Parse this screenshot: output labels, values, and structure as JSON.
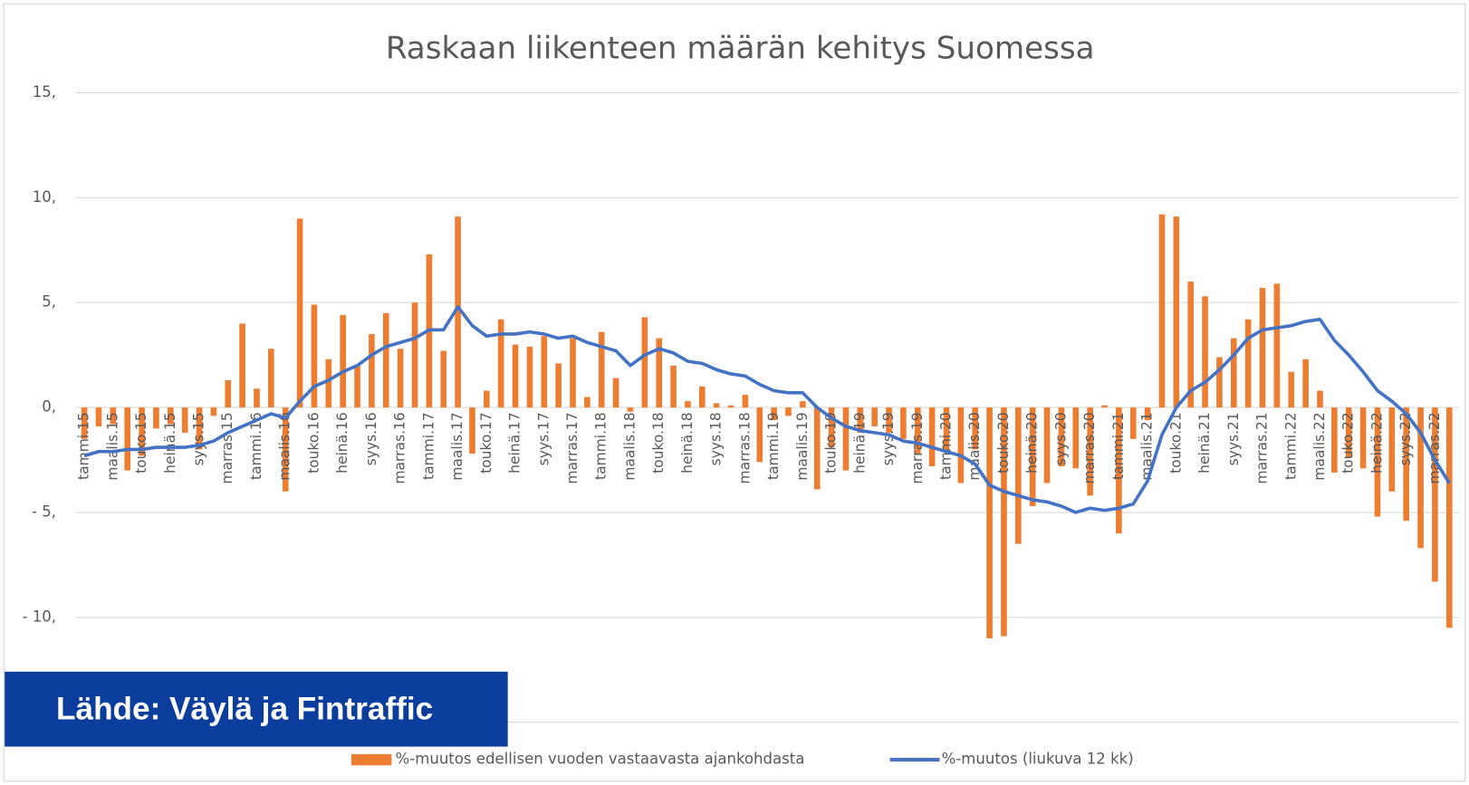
{
  "chart_data": {
    "type": "bar-line",
    "title": "Raskaan liikenteen määrän kehitys Suomessa",
    "annotation": "Lähde: Väylä ja Fintraffic",
    "categories": [
      "tammi.15",
      null,
      "maalis.15",
      null,
      "touko.15",
      null,
      "heinä.15",
      null,
      "syys.15",
      null,
      "marras.15",
      null,
      "tammi.16",
      null,
      "maalis.16",
      null,
      "touko.16",
      null,
      "heinä.16",
      null,
      "syys.16",
      null,
      "marras.16",
      null,
      "tammi.17",
      null,
      "maalis.17",
      null,
      "touko.17",
      null,
      "heinä.17",
      null,
      "syys.17",
      null,
      "marras.17",
      null,
      "tammi.18",
      null,
      "maalis.18",
      null,
      "touko.18",
      null,
      "heinä.18",
      null,
      "syys.18",
      null,
      "marras.18",
      null,
      "tammi.19",
      null,
      "maalis.19",
      null,
      "touko.19",
      null,
      "heinä.19",
      null,
      "syys.19",
      null,
      "marras.19",
      null,
      "tammi.20",
      null,
      "maalis.20",
      null,
      "touko.20",
      null,
      "heinä.20",
      null,
      "syys.20",
      null,
      "marras.20",
      null,
      "tammi.21",
      null,
      "maalis.21",
      null,
      "touko.21",
      null,
      "heinä.21",
      null,
      "syys.21",
      null,
      "marras.21",
      null,
      "tammi.22",
      null,
      "maalis.22",
      null,
      "touko.22",
      null,
      "heinä.22",
      null,
      "syys.22",
      null,
      "marras.22",
      null
    ],
    "series": [
      {
        "name": "%-muutos edellisen vuoden vastaavasta ajankohdasta",
        "type": "bar",
        "color": "#ed7d31",
        "values": [
          -1.5,
          -0.9,
          -0.8,
          -3.0,
          -2.3,
          -1.0,
          -0.8,
          -1.2,
          -2.0,
          -0.4,
          1.3,
          4.0,
          0.9,
          2.8,
          -4.0,
          9.0,
          4.9,
          2.3,
          4.4,
          2.0,
          3.5,
          4.5,
          2.8,
          5.0,
          7.3,
          2.7,
          9.1,
          -2.2,
          0.8,
          4.2,
          3.0,
          2.9,
          3.4,
          2.1,
          3.3,
          0.5,
          3.6,
          1.4,
          -0.2,
          4.3,
          3.3,
          2.0,
          0.3,
          1.0,
          0.2,
          0.1,
          0.6,
          -2.6,
          -0.6,
          -0.4,
          0.3,
          -3.9,
          -1.9,
          -3.0,
          -1.2,
          -0.9,
          -1.2,
          -1.5,
          -2.2,
          -2.8,
          -2.0,
          -3.6,
          -2.0,
          -11.0,
          -10.9,
          -6.5,
          -4.7,
          -3.6,
          -2.8,
          -2.9,
          -4.2,
          0.1,
          -6.0,
          -1.5,
          -0.6,
          9.2,
          9.1,
          6.0,
          5.3,
          2.4,
          3.3,
          4.2,
          5.7,
          5.9,
          1.7,
          2.3,
          0.8,
          -3.1,
          -2.4,
          -2.9,
          -5.2,
          -4.0,
          -5.4,
          -6.7,
          -8.3,
          -10.5
        ]
      },
      {
        "name": "%-muutos (liukuva 12 kk)",
        "type": "line",
        "color": "#4472c4",
        "values": [
          -2.3,
          -2.1,
          -2.1,
          -2.0,
          -2.0,
          -1.9,
          -1.9,
          -1.9,
          -1.8,
          -1.6,
          -1.2,
          -0.9,
          -0.6,
          -0.3,
          -0.5,
          0.3,
          1.0,
          1.3,
          1.7,
          2.0,
          2.5,
          2.9,
          3.1,
          3.3,
          3.7,
          3.7,
          4.8,
          3.9,
          3.4,
          3.5,
          3.5,
          3.6,
          3.5,
          3.3,
          3.4,
          3.1,
          2.9,
          2.7,
          2.0,
          2.5,
          2.8,
          2.6,
          2.2,
          2.1,
          1.8,
          1.6,
          1.5,
          1.1,
          0.8,
          0.7,
          0.7,
          0.0,
          -0.5,
          -0.9,
          -1.1,
          -1.2,
          -1.3,
          -1.6,
          -1.7,
          -1.9,
          -2.1,
          -2.3,
          -2.7,
          -3.7,
          -4.0,
          -4.2,
          -4.4,
          -4.5,
          -4.7,
          -5.0,
          -4.8,
          -4.9,
          -4.8,
          -4.6,
          -3.5,
          -1.3,
          0.0,
          0.8,
          1.2,
          1.8,
          2.5,
          3.3,
          3.7,
          3.8,
          3.9,
          4.1,
          4.2,
          3.2,
          2.5,
          1.7,
          0.8,
          0.3,
          -0.3,
          -1.2,
          -2.5,
          -3.6
        ]
      }
    ],
    "ylim": [
      -15,
      15
    ],
    "yticks": [
      {
        "value": 15,
        "label": "15,"
      },
      {
        "value": 10,
        "label": "10,"
      },
      {
        "value": 5,
        "label": "5,"
      },
      {
        "value": 0,
        "label": "0,"
      },
      {
        "value": -5,
        "label": "- 5,"
      },
      {
        "value": -10,
        "label": "- 10,"
      },
      -15
    ],
    "grid": true,
    "legend": "bottom"
  }
}
